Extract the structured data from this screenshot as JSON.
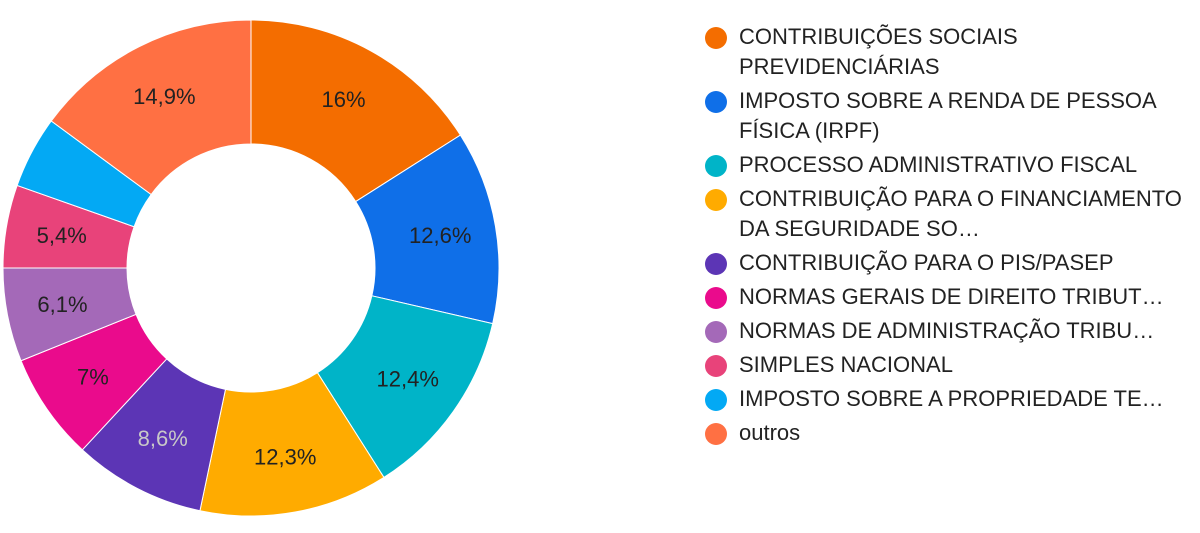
{
  "chart_data": {
    "type": "pie",
    "donut": true,
    "legend_position": "right",
    "categories": [
      "CONTRIBUIÇÕES SOCIAIS PREVIDENCIÁRIAS",
      "IMPOSTO SOBRE A RENDA DE PESSOA FÍSICA (IRPF)",
      "PROCESSO ADMINISTRATIVO FISCAL",
      "CONTRIBUIÇÃO PARA O FINANCIAMENTO DA SEGURIDADE SO…",
      "CONTRIBUIÇÃO PARA O PIS/PASEP",
      "NORMAS GERAIS DE DIREITO TRIBUT…",
      "NORMAS DE ADMINISTRAÇÃO TRIBU…",
      "SIMPLES NACIONAL",
      "IMPOSTO SOBRE A PROPRIEDADE TE…",
      "outros"
    ],
    "values": [
      16,
      12.6,
      12.4,
      12.3,
      8.6,
      7,
      6.1,
      5.4,
      4.7,
      14.9
    ],
    "labels": [
      "16%",
      "12,6%",
      "12,4%",
      "12,3%",
      "8,6%",
      "7%",
      "6,1%",
      "5,4%",
      "",
      "14,9%"
    ],
    "colors": [
      "#f46d00",
      "#0f6fe8",
      "#00b4c8",
      "#ffab00",
      "#5c35b5",
      "#ea0b8c",
      "#a469b8",
      "#e8437a",
      "#03a9f4",
      "#ff7043"
    ],
    "label_colors": [
      "#222222",
      "#222222",
      "#222222",
      "#222222",
      "#c8c8c8",
      "#222222",
      "#222222",
      "#222222",
      "#222222",
      "#222222"
    ]
  }
}
